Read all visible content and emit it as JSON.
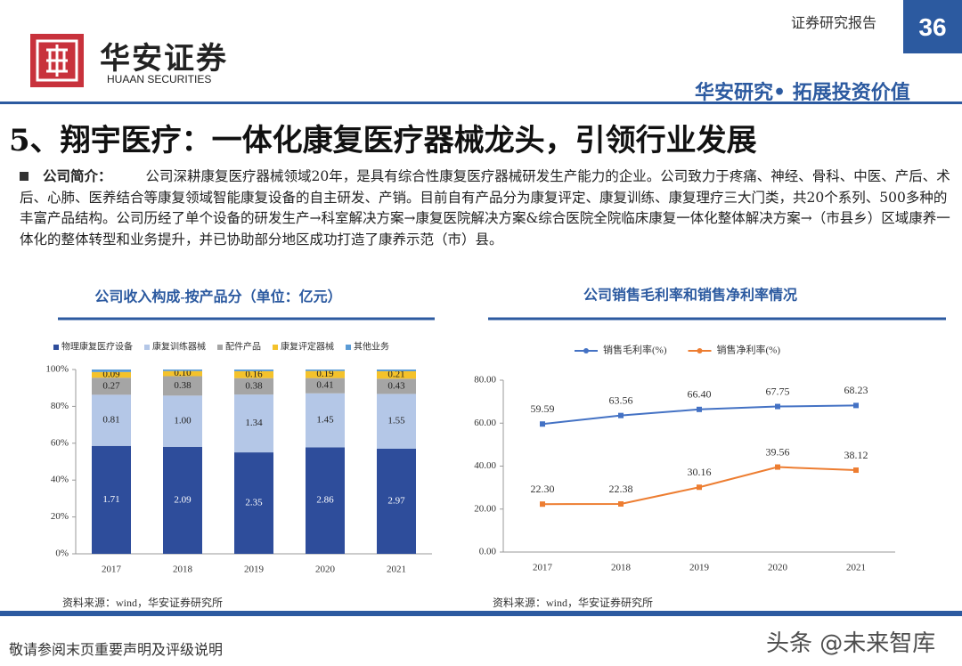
{
  "header": {
    "logo_cn": "华安证券",
    "logo_en": "HUAAN SECURITIES",
    "report_type": "证券研究报告",
    "page_number": "36",
    "slogan": "华安研究• 拓展投资价值"
  },
  "section_title": "5、翔宇医疗：一体化康复医疗器械龙头，引领行业发展",
  "intro": {
    "label": "公司简介：",
    "text": "公司深耕康复医疗器械领域20年，是具有综合性康复医疗器械研发生产能力的企业。公司致力于疼痛、神经、骨科、中医、产后、术后、心肺、医养结合等康复领域智能康复设备的自主研发、产销。目前自有产品分为康复评定、康复训练、康复理疗三大门类，共20个系列、500多种的丰富产品结构。公司历经了单个设备的研发生产→科室解决方案→康复医院解决方案&综合医院全院临床康复一体化整体解决方案→（市县乡）区域康养一体化的整体转型和业务提升，并已协助部分地区成功打造了康养示范（市）县。"
  },
  "chart_data": [
    {
      "type": "bar",
      "stacking": "percent",
      "title": "公司收入构成-按产品分（单位：亿元）",
      "source": "资料来源：wind，华安证券研究所",
      "categories": [
        "2017",
        "2018",
        "2019",
        "2020",
        "2021"
      ],
      "ylim": [
        0,
        100
      ],
      "yticks": [
        {
          "value": 0,
          "label": "0%"
        },
        {
          "value": 20,
          "label": "20%"
        },
        {
          "value": 40,
          "label": "40%"
        },
        {
          "value": 60,
          "label": "60%"
        },
        {
          "value": 80,
          "label": "80%"
        },
        {
          "value": 100,
          "label": "100%"
        }
      ],
      "grid": false,
      "legend": "top",
      "series": [
        {
          "name": "物理康复医疗设备",
          "color": "#2e4d9b",
          "values": [
            1.71,
            2.09,
            2.35,
            2.86,
            2.97
          ],
          "value_labels": [
            "1.71",
            "2.09",
            "2.35",
            "2.86",
            "2.97"
          ]
        },
        {
          "name": "康复训练器械",
          "color": "#b4c7e7",
          "values": [
            0.81,
            1.0,
            1.34,
            1.45,
            1.55
          ],
          "value_labels": [
            "0.81",
            "1.00",
            "1.34",
            "1.45",
            "1.55"
          ]
        },
        {
          "name": "配件产品",
          "color": "#a5a5a5",
          "values": [
            0.27,
            0.38,
            0.38,
            0.41,
            0.43
          ],
          "value_labels": [
            "0.27",
            "0.38",
            "0.38",
            "0.41",
            "0.43"
          ]
        },
        {
          "name": "康复评定器械",
          "color": "#f4c22b",
          "values": [
            0.09,
            0.1,
            0.16,
            0.19,
            0.21
          ],
          "value_labels": [
            "0.09",
            "0.10",
            "0.16",
            "0.19",
            "0.21"
          ]
        },
        {
          "name": "其他业务",
          "color": "#5b9bd5",
          "values": [
            0.04,
            0.03,
            0.04,
            0.04,
            0.05
          ]
        }
      ]
    },
    {
      "type": "line",
      "title": "公司销售毛利率和销售净利率情况",
      "source": "资料来源：wind，华安证券研究所",
      "categories": [
        "2017",
        "2018",
        "2019",
        "2020",
        "2021"
      ],
      "ylim": [
        0,
        80
      ],
      "yticks": [
        {
          "value": 0,
          "label": "0.00"
        },
        {
          "value": 20,
          "label": "20.00"
        },
        {
          "value": 40,
          "label": "40.00"
        },
        {
          "value": 60,
          "label": "60.00"
        },
        {
          "value": 80,
          "label": "80.00"
        }
      ],
      "grid": false,
      "legend": "top",
      "series": [
        {
          "name": "销售毛利率(%)",
          "color": "#4472c4",
          "values": [
            59.59,
            63.56,
            66.4,
            67.75,
            68.23
          ],
          "value_labels": [
            "59.59",
            "63.56",
            "66.40",
            "67.75",
            "68.23"
          ]
        },
        {
          "name": "销售净利率(%)",
          "color": "#ed7d31",
          "values": [
            22.3,
            22.38,
            30.16,
            39.56,
            38.12
          ],
          "value_labels": [
            "22.30",
            "22.38",
            "30.16",
            "39.56",
            "38.12"
          ]
        }
      ]
    }
  ],
  "footer": {
    "disclaimer": "敬请参阅末页重要声明及评级说明",
    "watermark": "头条 @未来智库"
  }
}
